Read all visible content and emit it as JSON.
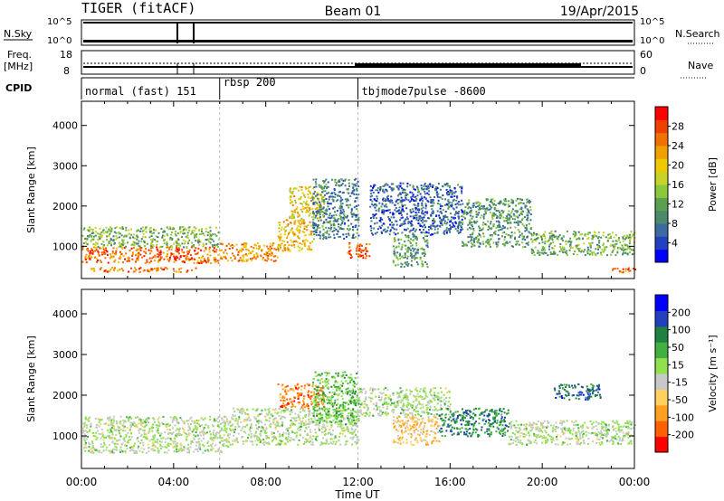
{
  "header": {
    "station": "TIGER (fitACF)",
    "beam": "Beam 01",
    "date": "19/Apr/2015"
  },
  "strips": {
    "nsky_label": "N.Sky",
    "nsky_ticks": [
      "10^5",
      "10^0"
    ],
    "nsearch_label": "N.Search",
    "nsearch_ticks": [
      "10^5",
      "10^0"
    ],
    "freq_label": "Freq.",
    "freq_unit": "[MHz]",
    "freq_ticks": [
      "18",
      "8"
    ],
    "nave_label": "Nave",
    "nave_ticks": [
      "60",
      "0"
    ],
    "cpid_label": "CPID"
  },
  "cpid_modes": [
    {
      "name": "normal (fast) 151",
      "start_h": 0.0
    },
    {
      "name": "rbsp 200",
      "start_h": 6.0
    },
    {
      "name": "tbjmode7pulse -8600",
      "start_h": 12.0
    }
  ],
  "chart_data": [
    {
      "type": "heatmap",
      "panel": "power",
      "xlabel": "Time UT",
      "ylabel": "Slant Range [km]",
      "xlim": [
        0,
        24
      ],
      "ylim": [
        200,
        4600
      ],
      "y_ticks": [
        "1000",
        "2000",
        "3000",
        "4000"
      ],
      "x_ticks": [
        "00:00",
        "04:00",
        "08:00",
        "12:00",
        "16:00",
        "20:00",
        "00:00"
      ],
      "colorbar": {
        "label": "Power [dB]",
        "ticks": [
          "28",
          "24",
          "20",
          "16",
          "12",
          "8",
          "4"
        ],
        "range": [
          0,
          30
        ],
        "colors": [
          "#0000ff",
          "#2040c0",
          "#3a6aa0",
          "#4a8a6a",
          "#5aa050",
          "#8cc83c",
          "#c8d228",
          "#f0c800",
          "#f0a000",
          "#f07000",
          "#f04000",
          "#ff0000"
        ]
      },
      "regions": [
        {
          "t0": 0.0,
          "t1": 6.0,
          "r0": 600,
          "r1": 1000,
          "level": 24
        },
        {
          "t0": 0.0,
          "t1": 6.0,
          "r0": 1000,
          "r1": 1500,
          "level": 12
        },
        {
          "t0": 0.3,
          "t1": 5.0,
          "r0": 380,
          "r1": 500,
          "level": 24
        },
        {
          "t0": 6.0,
          "t1": 8.5,
          "r0": 650,
          "r1": 1100,
          "level": 22
        },
        {
          "t0": 8.5,
          "t1": 10.0,
          "r0": 900,
          "r1": 1700,
          "level": 20
        },
        {
          "t0": 9.0,
          "t1": 10.5,
          "r0": 1700,
          "r1": 2500,
          "level": 18
        },
        {
          "t0": 10.0,
          "t1": 12.0,
          "r0": 1200,
          "r1": 2700,
          "level": 8
        },
        {
          "t0": 11.5,
          "t1": 12.5,
          "r0": 700,
          "r1": 1100,
          "level": 26
        },
        {
          "t0": 12.5,
          "t1": 16.5,
          "r0": 1300,
          "r1": 2600,
          "level": 6
        },
        {
          "t0": 13.5,
          "t1": 15.0,
          "r0": 500,
          "r1": 1300,
          "level": 10
        },
        {
          "t0": 16.5,
          "t1": 19.5,
          "r0": 1000,
          "r1": 2200,
          "level": 10
        },
        {
          "t0": 19.5,
          "t1": 24.0,
          "r0": 800,
          "r1": 1400,
          "level": 12
        },
        {
          "t0": 23.0,
          "t1": 24.0,
          "r0": 350,
          "r1": 500,
          "level": 24
        }
      ]
    },
    {
      "type": "heatmap",
      "panel": "velocity",
      "xlabel": "Time UT",
      "ylabel": "Slant Range [km]",
      "xlim": [
        0,
        24
      ],
      "ylim": [
        200,
        4600
      ],
      "y_ticks": [
        "1000",
        "2000",
        "3000",
        "4000"
      ],
      "x_ticks": [
        "00:00",
        "04:00",
        "08:00",
        "12:00",
        "16:00",
        "20:00",
        "00:00"
      ],
      "colorbar": {
        "label": "Velocity [m s⁻¹]",
        "ticks": [
          "200",
          "100",
          "50",
          "15",
          "-15",
          "-50",
          "-100",
          "-200"
        ],
        "range": [
          -250,
          250
        ],
        "colors": [
          "#ff0000",
          "#ff6000",
          "#ffa020",
          "#ffd060",
          "#c8c8c8",
          "#90e050",
          "#40b040",
          "#208040",
          "#2040c0",
          "#0000ff"
        ]
      },
      "regions": [
        {
          "t0": 0.0,
          "t1": 6.5,
          "r0": 600,
          "r1": 1500,
          "value": 0
        },
        {
          "t0": 6.5,
          "t1": 12.0,
          "r0": 800,
          "r1": 1700,
          "value": 0
        },
        {
          "t0": 8.5,
          "t1": 10.5,
          "r0": 1700,
          "r1": 2300,
          "value": -150
        },
        {
          "t0": 10.0,
          "t1": 12.0,
          "r0": 1300,
          "r1": 2600,
          "value": 60
        },
        {
          "t0": 12.0,
          "t1": 16.0,
          "r0": 1500,
          "r1": 2200,
          "value": 0
        },
        {
          "t0": 13.5,
          "t1": 15.5,
          "r0": 800,
          "r1": 1500,
          "value": -80
        },
        {
          "t0": 15.5,
          "t1": 18.5,
          "r0": 1000,
          "r1": 1700,
          "value": 120
        },
        {
          "t0": 18.5,
          "t1": 24.0,
          "r0": 800,
          "r1": 1400,
          "value": 0
        },
        {
          "t0": 20.5,
          "t1": 22.5,
          "r0": 1900,
          "r1": 2300,
          "value": 150
        }
      ]
    }
  ]
}
